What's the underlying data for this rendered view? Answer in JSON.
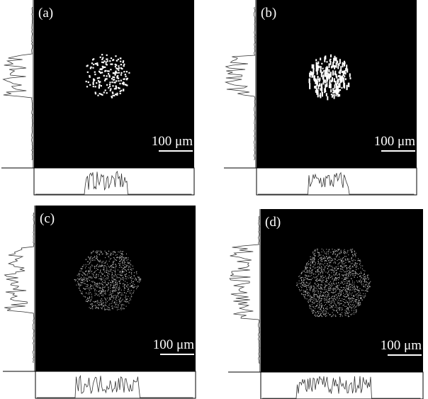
{
  "panels": [
    {
      "label": "(a)",
      "scale_bar": "100 μm"
    },
    {
      "label": "(b)",
      "scale_bar": "100 μm"
    },
    {
      "label": "(c)",
      "scale_bar": "100 μm"
    },
    {
      "label": "(d)",
      "scale_bar": "100 μm"
    }
  ]
}
